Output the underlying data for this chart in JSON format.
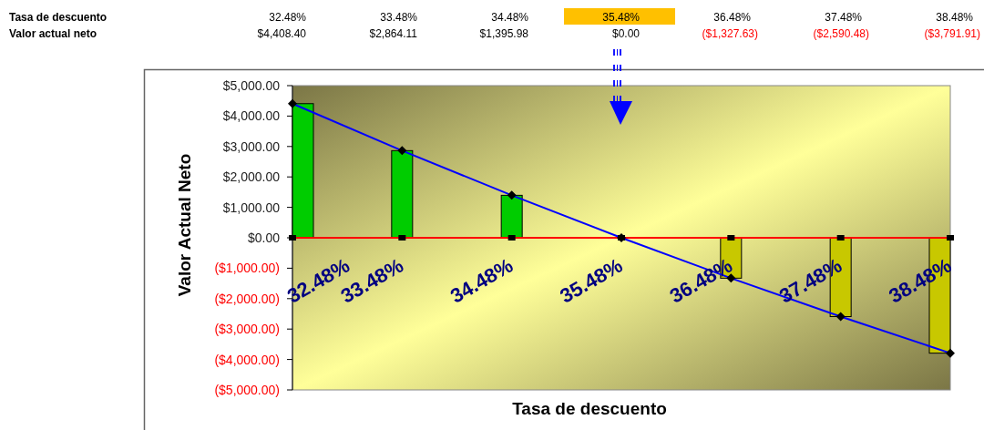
{
  "chart_data": {
    "type": "bar",
    "xlabel": "Tasa de descuento",
    "ylabel": "Valor Actual Neto",
    "categories": [
      "32.48%",
      "33.48%",
      "34.48%",
      "35.48%",
      "36.48%",
      "37.48%",
      "38.48%"
    ],
    "series": [
      {
        "values": [
          4408.4,
          2864.11,
          1395.98,
          0,
          -1327.63,
          -2590.48,
          -3791.91
        ],
        "colors": [
          "#00cc00",
          "#00cc00",
          "#00cc00",
          "#00cc00",
          "#c8c800",
          "#c8c800",
          "#c8c800"
        ]
      },
      {
        "type": "line",
        "color": "#ff0000",
        "values": [
          0,
          0,
          0,
          0,
          0,
          0,
          0
        ],
        "marker": "square"
      },
      {
        "type": "line",
        "color": "#0000ff",
        "values": [
          4408.4,
          2864.11,
          1395.98,
          0,
          -1327.63,
          -2590.48,
          -3791.91
        ],
        "marker": "diamond",
        "value_labels": [
          "$4,408.40",
          "$2,864.11",
          "$1,395.98",
          "$0.00",
          "($1,327.63)",
          "($2,590.48)",
          "($3,791.91)"
        ]
      }
    ],
    "ylim": [
      -5000,
      5000
    ],
    "yticks": [
      {
        "value": -5000,
        "label": "($5,000.00)"
      },
      {
        "value": -4000,
        "label": "($4,000.00)"
      },
      {
        "value": -3000,
        "label": "($3,000.00)"
      },
      {
        "value": -2000,
        "label": "($2,000.00)"
      },
      {
        "value": -1000,
        "label": "($1,000.00)"
      },
      {
        "value": 0,
        "label": "$0.00"
      },
      {
        "value": 1000,
        "label": "$1,000.00"
      },
      {
        "value": 2000,
        "label": "$2,000.00"
      },
      {
        "value": 3000,
        "label": "$3,000.00"
      },
      {
        "value": 4000,
        "label": "$4,000.00"
      },
      {
        "value": 5000,
        "label": "$5,000.00"
      }
    ],
    "annotations": [
      "Tasa de descuento",
      "Valor actual neto"
    ]
  }
}
